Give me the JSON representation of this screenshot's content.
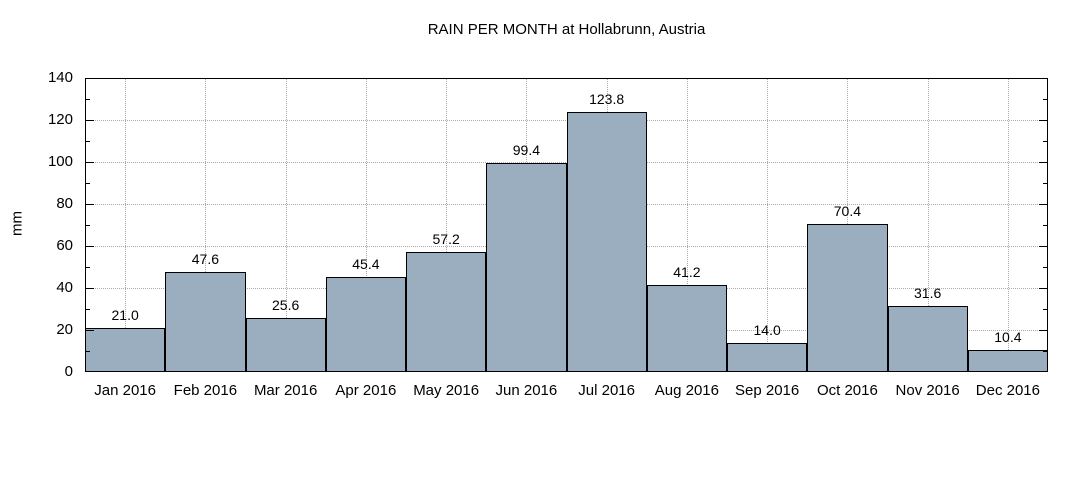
{
  "title": "RAIN PER MONTH at Hollabrunn, Austria",
  "chart_data": {
    "type": "bar",
    "title": "RAIN PER MONTH at Hollabrunn, Austria",
    "categories": [
      "Jan 2016",
      "Feb 2016",
      "Mar 2016",
      "Apr 2016",
      "May 2016",
      "Jun 2016",
      "Jul 2016",
      "Aug 2016",
      "Sep 2016",
      "Oct 2016",
      "Nov 2016",
      "Dec 2016"
    ],
    "values": [
      21.0,
      47.6,
      25.6,
      45.4,
      57.2,
      99.4,
      123.8,
      41.2,
      14.0,
      70.4,
      31.6,
      10.4
    ],
    "value_labels": [
      "21.0",
      "47.6",
      "25.6",
      "45.4",
      "57.2",
      "99.4",
      "123.8",
      "41.2",
      "14.0",
      "70.4",
      "31.6",
      "10.4"
    ],
    "xlabel": "",
    "ylabel": "mm",
    "ylim": [
      0,
      140
    ],
    "ytick_step": 20,
    "ytick_minor_step": 10,
    "ytick_labels": [
      "0",
      "20",
      "40",
      "60",
      "80",
      "100",
      "120",
      "140"
    ],
    "grid": "dotted, horizontal at major ticks and vertical at bar centers",
    "legend": "none",
    "bar_style": "adjacent boxes, full category width, black outline, value label above each bar",
    "colors": {
      "bar_fill": "#9aaec0",
      "bar_border": "#000000",
      "grid": "#a9a9a9",
      "frame": "#000000",
      "text": "#000000",
      "background": "#ffffff"
    }
  }
}
